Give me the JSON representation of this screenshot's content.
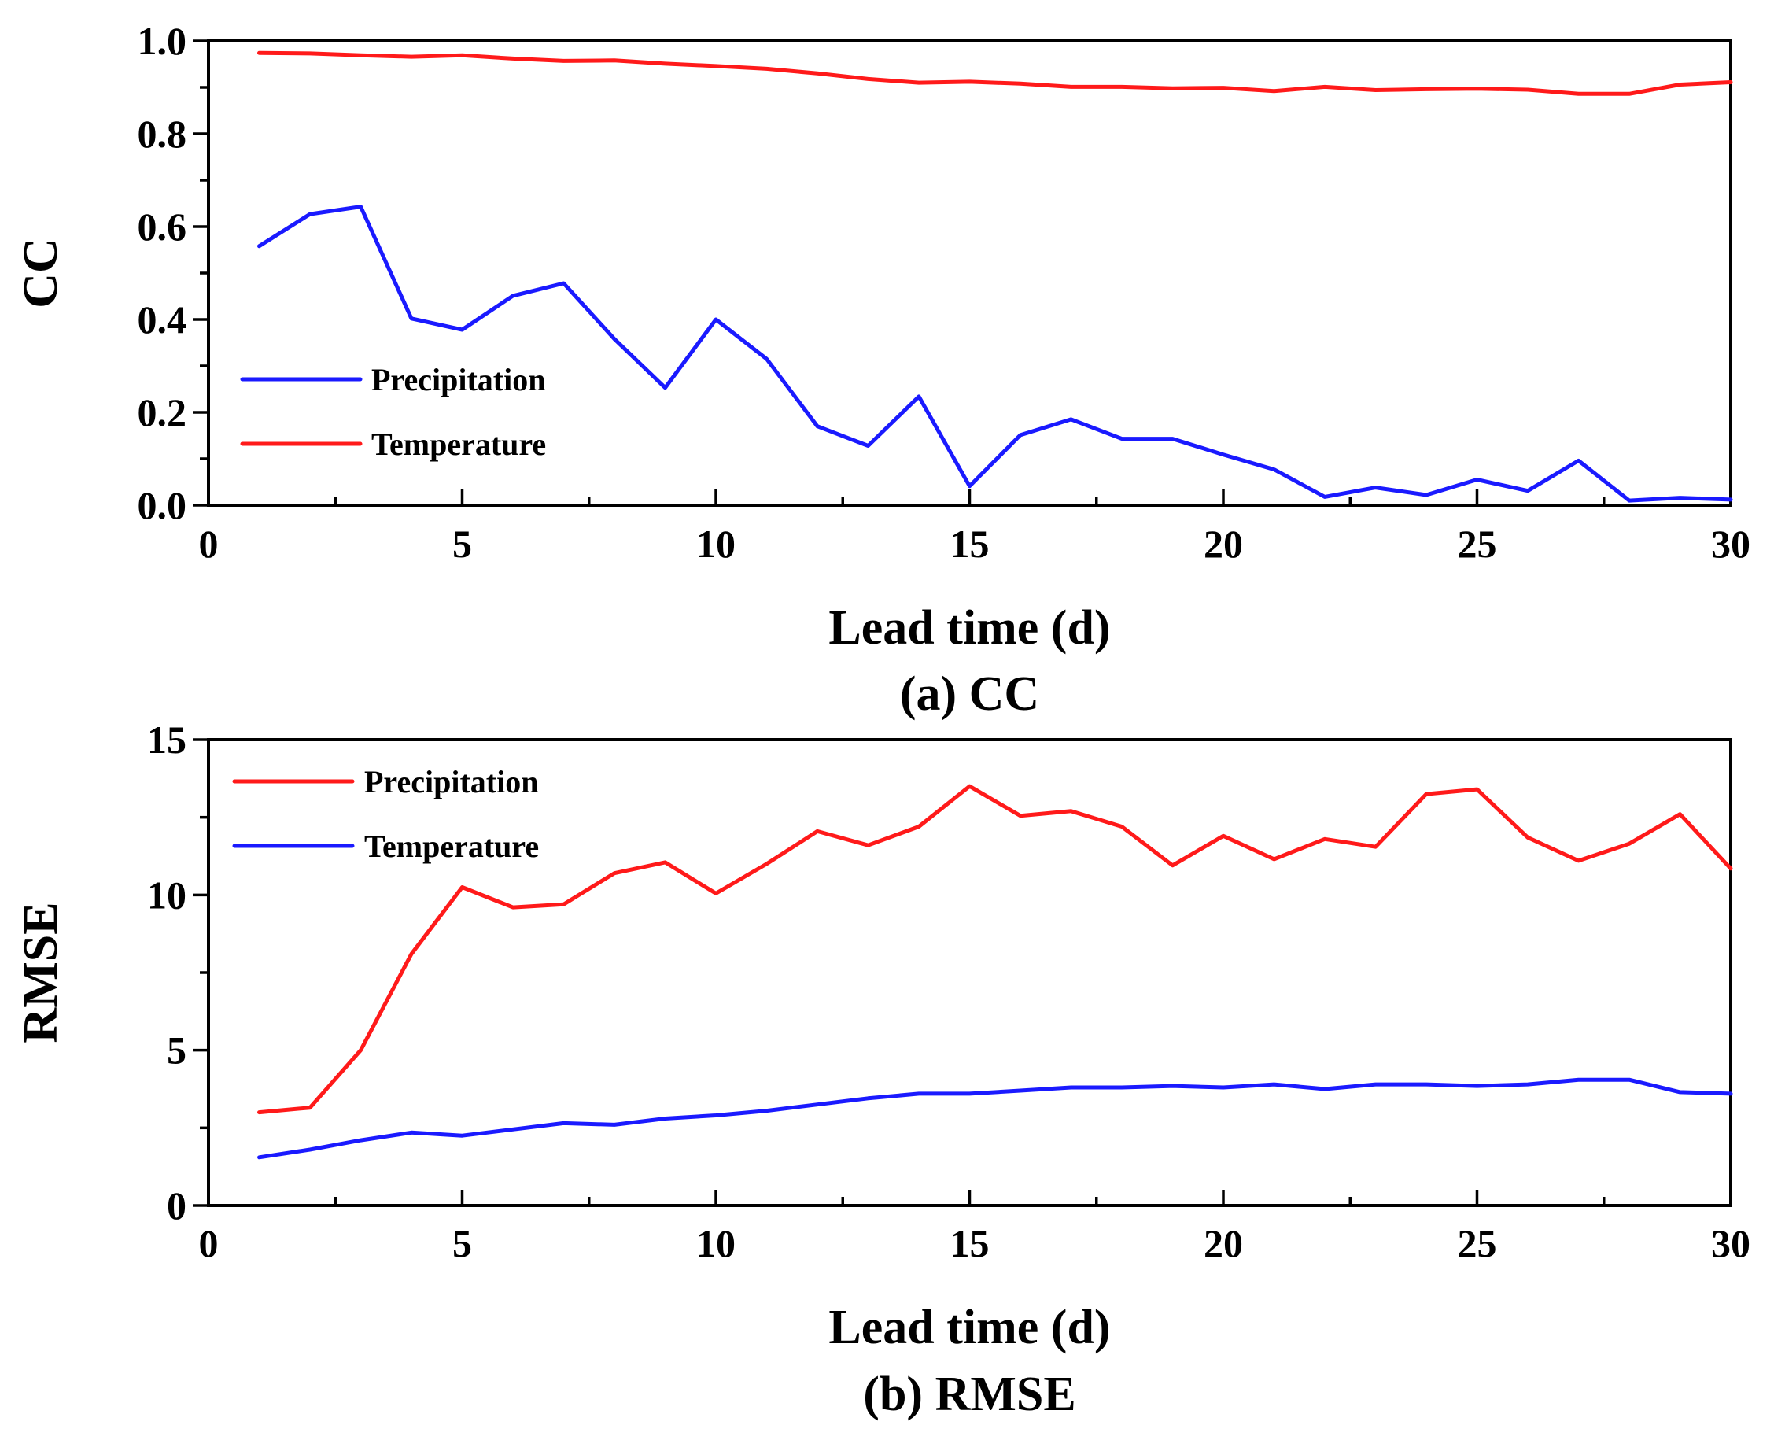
{
  "chart_data": [
    {
      "type": "line",
      "caption": "(a) CC",
      "xlabel": "Lead time (d)",
      "ylabel": "CC",
      "xlim": [
        0,
        30
      ],
      "ylim": [
        0,
        1.0
      ],
      "xticks": [
        "0",
        "5",
        "10",
        "15",
        "20",
        "25",
        "30"
      ],
      "yticks": [
        "0.0",
        "0.2",
        "0.4",
        "0.6",
        "0.8",
        "1.0"
      ],
      "legend_position": "middle-left",
      "x": [
        1,
        2,
        3,
        4,
        5,
        6,
        7,
        8,
        9,
        10,
        11,
        12,
        13,
        14,
        15,
        16,
        17,
        18,
        19,
        20,
        21,
        22,
        23,
        24,
        25,
        26,
        27,
        28,
        29,
        30
      ],
      "series": [
        {
          "name": "Precipitation",
          "color": "#1a1aff",
          "values": [
            0.558,
            0.627,
            0.643,
            0.402,
            0.378,
            0.451,
            0.478,
            0.358,
            0.253,
            0.4,
            0.315,
            0.17,
            0.128,
            0.234,
            0.041,
            0.151,
            0.185,
            0.143,
            0.143,
            0.109,
            0.077,
            0.018,
            0.038,
            0.022,
            0.055,
            0.031,
            0.096,
            0.01,
            0.016,
            0.012
          ]
        },
        {
          "name": "Temperature",
          "color": "#ff1a1a",
          "values": [
            0.974,
            0.973,
            0.969,
            0.966,
            0.969,
            0.962,
            0.957,
            0.958,
            0.951,
            0.946,
            0.94,
            0.93,
            0.918,
            0.91,
            0.912,
            0.908,
            0.901,
            0.901,
            0.898,
            0.899,
            0.892,
            0.901,
            0.894,
            0.896,
            0.897,
            0.895,
            0.886,
            0.886,
            0.906,
            0.911
          ]
        }
      ]
    },
    {
      "type": "line",
      "caption": "(b) RMSE",
      "xlabel": "Lead time (d)",
      "ylabel": "RMSE",
      "xlim": [
        0,
        30
      ],
      "ylim": [
        0,
        15
      ],
      "xticks": [
        "0",
        "5",
        "10",
        "15",
        "20",
        "25",
        "30"
      ],
      "yticks": [
        "0",
        "5",
        "10",
        "15"
      ],
      "legend_position": "top-left",
      "x": [
        1,
        2,
        3,
        4,
        5,
        6,
        7,
        8,
        9,
        10,
        11,
        12,
        13,
        14,
        15,
        16,
        17,
        18,
        19,
        20,
        21,
        22,
        23,
        24,
        25,
        26,
        27,
        28,
        29,
        30
      ],
      "series": [
        {
          "name": "Precipitation",
          "color": "#ff1a1a",
          "values": [
            3.0,
            3.15,
            5.0,
            8.1,
            10.25,
            9.6,
            9.7,
            10.7,
            11.05,
            10.05,
            11.0,
            12.05,
            11.6,
            12.2,
            13.5,
            12.55,
            12.7,
            12.2,
            10.95,
            11.9,
            11.15,
            11.8,
            11.55,
            13.25,
            13.4,
            11.85,
            11.1,
            11.65,
            12.6,
            10.85
          ]
        },
        {
          "name": "Temperature",
          "color": "#1a1aff",
          "values": [
            1.55,
            1.8,
            2.1,
            2.35,
            2.25,
            2.45,
            2.65,
            2.6,
            2.8,
            2.9,
            3.05,
            3.25,
            3.45,
            3.6,
            3.6,
            3.7,
            3.8,
            3.8,
            3.85,
            3.8,
            3.9,
            3.75,
            3.9,
            3.9,
            3.85,
            3.9,
            4.05,
            4.05,
            3.65,
            3.6
          ]
        }
      ]
    }
  ]
}
